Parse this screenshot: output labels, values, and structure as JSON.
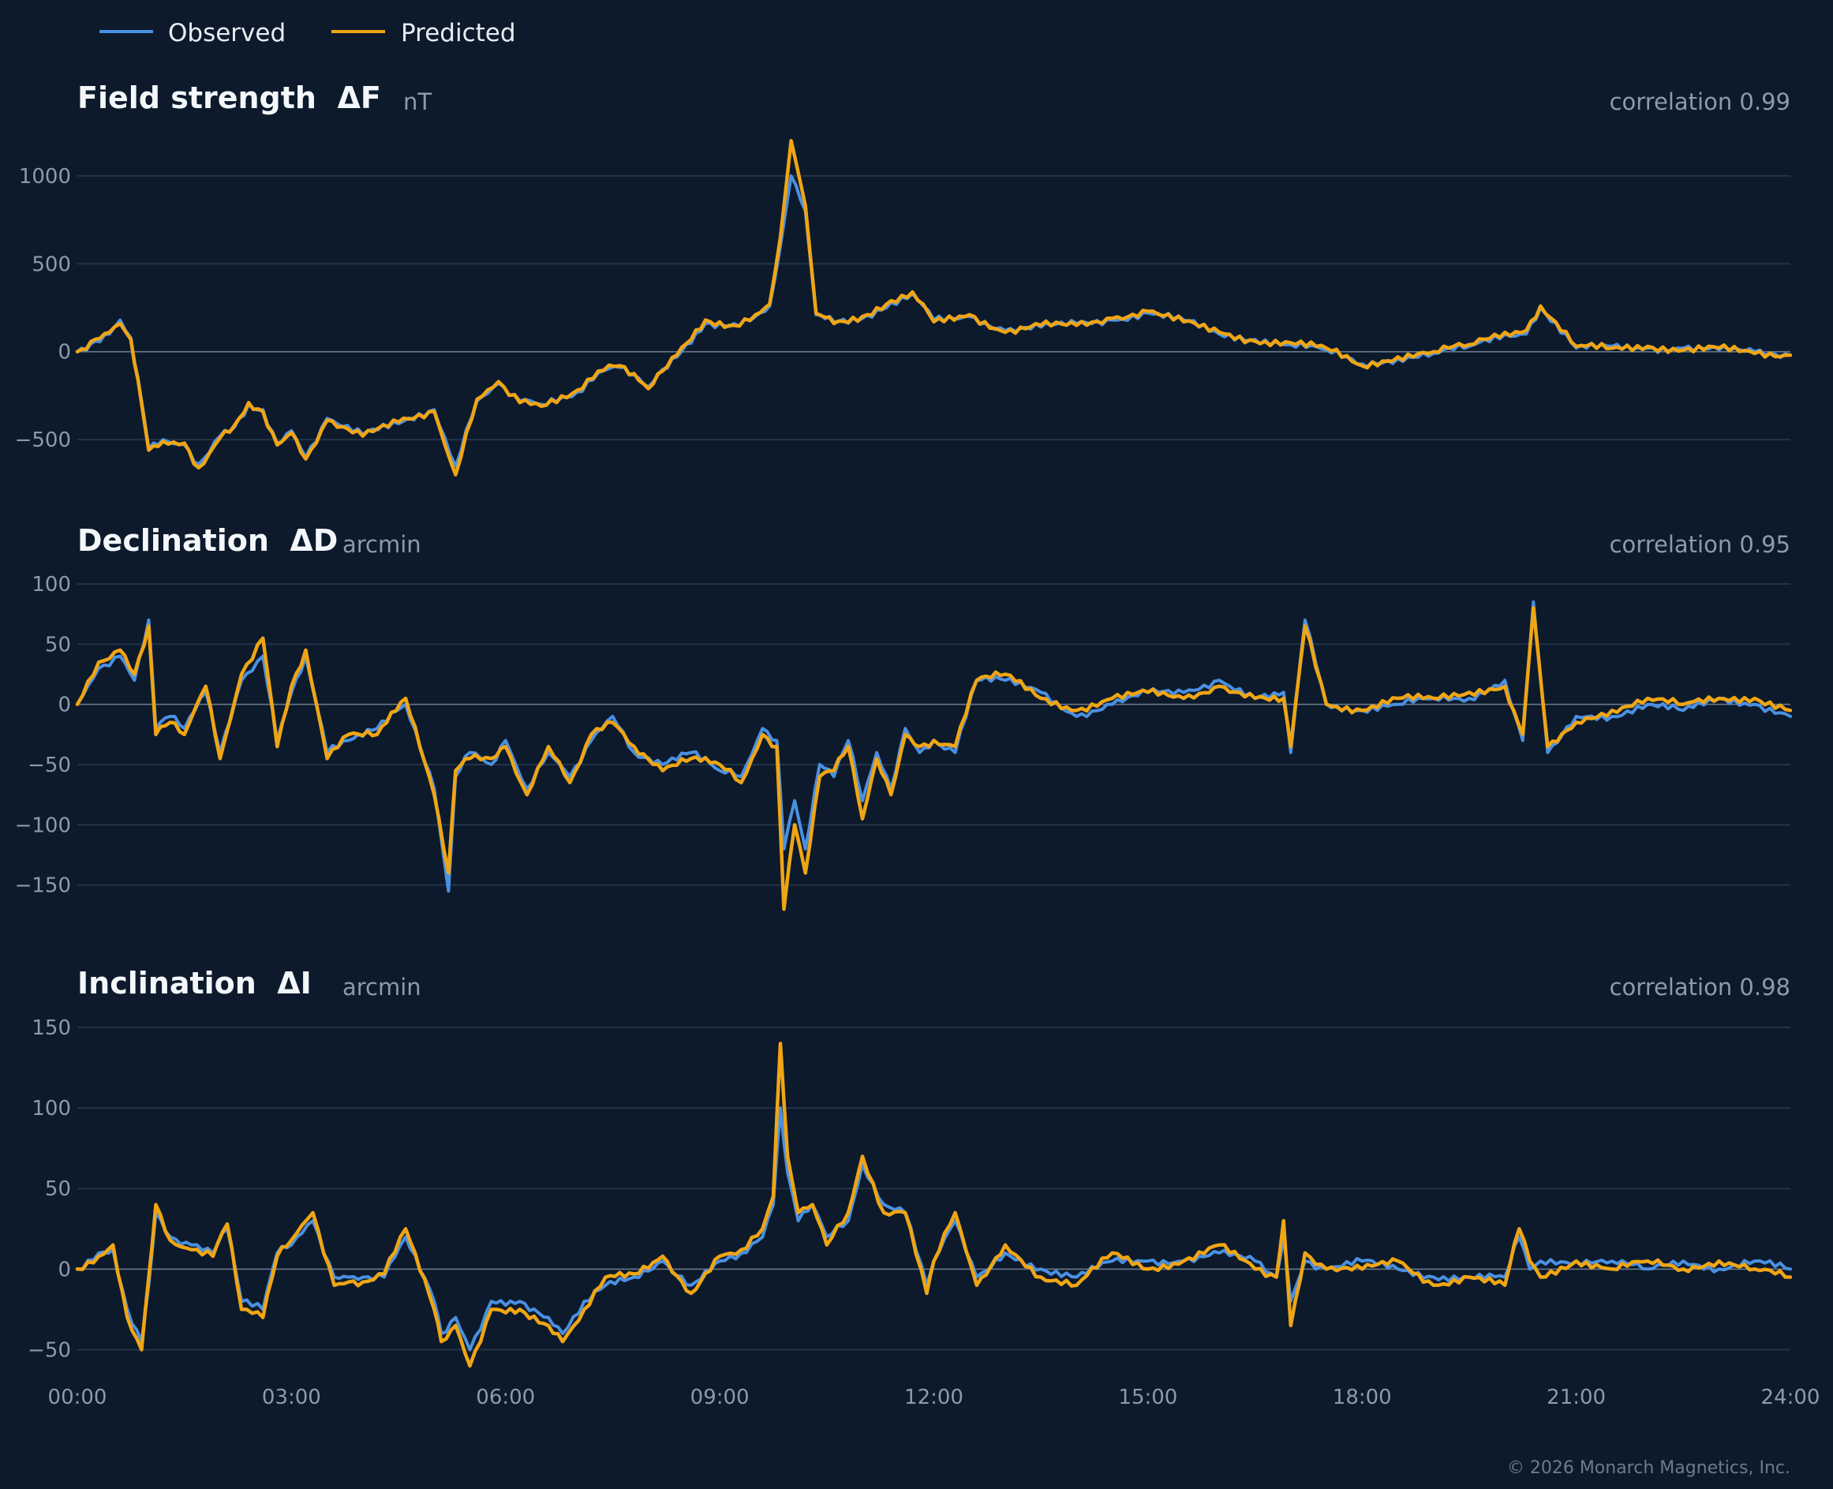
{
  "legend": [
    {
      "label": "Observed",
      "color": "#4a90e2"
    },
    {
      "label": "Predicted",
      "color": "#f0a514"
    }
  ],
  "footer": "© 2026 Monarch Magnetics, Inc.",
  "chart_data": [
    {
      "type": "line",
      "title": "Field strength  ΔF",
      "unit": "nT",
      "correlation_label": "correlation 0.99",
      "ylim": [
        -760,
        1260
      ],
      "yticks": [
        1000,
        500,
        0,
        -500
      ],
      "xlim": [
        0,
        24
      ],
      "xticks": [
        "00:00",
        "03:00",
        "06:00",
        "09:00",
        "12:00",
        "15:00",
        "18:00",
        "21:00",
        "24:00"
      ],
      "grid": true,
      "x": [
        0,
        0.25,
        0.45,
        0.6,
        0.75,
        0.85,
        1.0,
        1.2,
        1.5,
        1.7,
        2.0,
        2.2,
        2.4,
        2.6,
        2.8,
        3.0,
        3.2,
        3.5,
        4.0,
        4.5,
        5.0,
        5.3,
        5.6,
        5.9,
        6.2,
        6.5,
        7.0,
        7.3,
        7.6,
        8.0,
        8.4,
        8.8,
        9.2,
        9.5,
        9.7,
        9.85,
        10.0,
        10.2,
        10.35,
        10.6,
        11.0,
        11.4,
        11.7,
        12.0,
        12.5,
        13.0,
        13.5,
        14.0,
        14.5,
        15.0,
        15.5,
        16.0,
        16.5,
        17.0,
        17.5,
        18.0,
        18.5,
        19.0,
        19.5,
        20.0,
        20.3,
        20.5,
        21.0,
        21.5,
        22.0,
        22.5,
        23.0,
        23.5,
        24.0
      ],
      "series": [
        {
          "name": "Observed",
          "values": [
            0,
            60,
            100,
            180,
            80,
            -150,
            -550,
            -500,
            -530,
            -640,
            -480,
            -430,
            -300,
            -330,
            -520,
            -450,
            -600,
            -380,
            -470,
            -410,
            -330,
            -650,
            -280,
            -180,
            -280,
            -300,
            -230,
            -120,
            -90,
            -200,
            -30,
            160,
            160,
            200,
            260,
            600,
            1000,
            800,
            210,
            170,
            190,
            280,
            330,
            180,
            200,
            120,
            140,
            160,
            180,
            220,
            180,
            100,
            70,
            40,
            10,
            -70,
            -40,
            -10,
            30,
            100,
            100,
            250,
            20,
            30,
            20,
            20,
            10,
            0,
            -20
          ]
        },
        {
          "name": "Predicted",
          "values": [
            0,
            70,
            110,
            160,
            70,
            -160,
            -560,
            -510,
            -520,
            -660,
            -490,
            -420,
            -290,
            -340,
            -530,
            -460,
            -610,
            -390,
            -480,
            -400,
            -340,
            -700,
            -270,
            -170,
            -290,
            -310,
            -220,
            -110,
            -80,
            -210,
            -20,
            180,
            150,
            210,
            270,
            650,
            1200,
            830,
            220,
            160,
            200,
            290,
            340,
            170,
            210,
            110,
            150,
            150,
            190,
            230,
            170,
            110,
            60,
            50,
            20,
            -80,
            -30,
            0,
            40,
            110,
            120,
            260,
            30,
            20,
            30,
            10,
            20,
            -10,
            -20
          ]
        }
      ]
    },
    {
      "type": "line",
      "title": "Declination  ΔD",
      "unit": "arcmin",
      "correlation_label": "correlation 0.95",
      "ylim": [
        -185,
        100
      ],
      "yticks": [
        100,
        50,
        0,
        -50,
        -100,
        -150
      ],
      "xlim": [
        0,
        24
      ],
      "xticks": [
        "00:00",
        "03:00",
        "06:00",
        "09:00",
        "12:00",
        "15:00",
        "18:00",
        "21:00",
        "24:00"
      ],
      "grid": true,
      "x": [
        0,
        0.3,
        0.6,
        0.8,
        1.0,
        1.1,
        1.3,
        1.5,
        1.8,
        2.0,
        2.3,
        2.6,
        2.8,
        3.0,
        3.2,
        3.5,
        3.8,
        4.2,
        4.6,
        5.0,
        5.2,
        5.3,
        5.5,
        5.8,
        6.0,
        6.3,
        6.6,
        6.9,
        7.2,
        7.5,
        7.8,
        8.2,
        8.6,
        9.0,
        9.3,
        9.6,
        9.8,
        9.9,
        10.05,
        10.2,
        10.4,
        10.6,
        10.8,
        11.0,
        11.2,
        11.4,
        11.6,
        11.8,
        12.0,
        12.3,
        12.6,
        13.0,
        13.5,
        14.0,
        14.5,
        15.0,
        15.5,
        16.0,
        16.5,
        16.9,
        17.0,
        17.2,
        17.5,
        18.0,
        18.5,
        19.0,
        19.5,
        20.0,
        20.25,
        20.4,
        20.6,
        21.0,
        21.5,
        22.0,
        22.5,
        23.0,
        23.5,
        24.0
      ],
      "series": [
        {
          "name": "Observed",
          "values": [
            0,
            30,
            40,
            20,
            70,
            -20,
            -10,
            -20,
            10,
            -40,
            20,
            40,
            -30,
            10,
            40,
            -40,
            -30,
            -20,
            0,
            -70,
            -155,
            -60,
            -40,
            -50,
            -30,
            -70,
            -40,
            -60,
            -30,
            -10,
            -40,
            -50,
            -40,
            -55,
            -60,
            -20,
            -30,
            -120,
            -80,
            -120,
            -50,
            -60,
            -30,
            -80,
            -40,
            -70,
            -20,
            -40,
            -30,
            -40,
            20,
            20,
            10,
            -10,
            0,
            10,
            10,
            20,
            5,
            10,
            -40,
            70,
            0,
            -5,
            0,
            5,
            5,
            20,
            -30,
            85,
            -40,
            -10,
            -10,
            0,
            -5,
            5,
            0,
            -10
          ]
        },
        {
          "name": "Predicted",
          "values": [
            0,
            35,
            45,
            25,
            65,
            -25,
            -15,
            -25,
            15,
            -45,
            25,
            55,
            -35,
            15,
            45,
            -45,
            -25,
            -25,
            5,
            -75,
            -140,
            -55,
            -45,
            -45,
            -35,
            -75,
            -35,
            -65,
            -25,
            -15,
            -35,
            -55,
            -45,
            -50,
            -65,
            -25,
            -35,
            -170,
            -100,
            -140,
            -60,
            -55,
            -35,
            -95,
            -45,
            -75,
            -25,
            -35,
            -30,
            -35,
            20,
            25,
            5,
            -5,
            5,
            10,
            5,
            15,
            5,
            5,
            -35,
            65,
            0,
            -5,
            5,
            5,
            10,
            15,
            -25,
            80,
            -35,
            -15,
            -5,
            5,
            0,
            5,
            5,
            -5
          ]
        }
      ]
    },
    {
      "type": "line",
      "title": "Inclination  ΔI",
      "unit": "arcmin",
      "correlation_label": "correlation 0.98",
      "ylim": [
        -63,
        150
      ],
      "yticks": [
        150,
        100,
        50,
        0,
        -50
      ],
      "xlim": [
        0,
        24
      ],
      "xticks": [
        "00:00",
        "03:00",
        "06:00",
        "09:00",
        "12:00",
        "15:00",
        "18:00",
        "21:00",
        "24:00"
      ],
      "grid": true,
      "x": [
        0,
        0.3,
        0.5,
        0.7,
        0.9,
        1.0,
        1.1,
        1.3,
        1.6,
        1.9,
        2.1,
        2.3,
        2.6,
        2.8,
        3.0,
        3.3,
        3.6,
        3.8,
        4.0,
        4.3,
        4.6,
        5.0,
        5.1,
        5.3,
        5.5,
        5.8,
        6.2,
        6.6,
        6.8,
        7.1,
        7.4,
        7.8,
        8.2,
        8.6,
        9.0,
        9.3,
        9.6,
        9.75,
        9.85,
        9.95,
        10.1,
        10.3,
        10.5,
        10.8,
        11.0,
        11.3,
        11.6,
        11.9,
        12.0,
        12.3,
        12.6,
        13.0,
        13.5,
        14.0,
        14.5,
        15.0,
        15.5,
        16.0,
        16.5,
        16.8,
        16.9,
        17.0,
        17.2,
        17.5,
        18.0,
        18.5,
        19.0,
        19.5,
        20.0,
        20.2,
        20.35,
        20.5,
        21.0,
        21.5,
        22.0,
        22.5,
        23.0,
        23.5,
        24.0
      ],
      "series": [
        {
          "name": "Observed",
          "values": [
            0,
            10,
            12,
            -25,
            -45,
            -10,
            35,
            20,
            15,
            10,
            25,
            -20,
            -25,
            10,
            15,
            30,
            -5,
            -5,
            -5,
            -5,
            20,
            -20,
            -40,
            -30,
            -50,
            -20,
            -20,
            -30,
            -40,
            -20,
            -10,
            -5,
            5,
            -10,
            5,
            10,
            20,
            40,
            100,
            60,
            30,
            40,
            20,
            30,
            65,
            40,
            35,
            -10,
            5,
            30,
            -5,
            10,
            0,
            -5,
            5,
            5,
            5,
            10,
            5,
            -5,
            20,
            -20,
            5,
            0,
            5,
            0,
            -5,
            -5,
            -5,
            20,
            0,
            5,
            5,
            5,
            0,
            5,
            0,
            5,
            0
          ]
        },
        {
          "name": "Predicted",
          "values": [
            0,
            8,
            15,
            -30,
            -50,
            -5,
            40,
            18,
            12,
            8,
            28,
            -25,
            -30,
            8,
            18,
            35,
            -10,
            -8,
            -8,
            -3,
            25,
            -25,
            -45,
            -35,
            -60,
            -25,
            -25,
            -35,
            -45,
            -25,
            -5,
            -3,
            8,
            -15,
            8,
            12,
            25,
            45,
            140,
            70,
            35,
            40,
            15,
            35,
            70,
            35,
            35,
            -15,
            5,
            35,
            -10,
            15,
            -5,
            -10,
            10,
            0,
            5,
            15,
            0,
            -5,
            30,
            -35,
            10,
            0,
            0,
            5,
            -10,
            -5,
            -10,
            25,
            5,
            -5,
            5,
            0,
            5,
            0,
            5,
            0,
            -5
          ]
        }
      ]
    }
  ]
}
